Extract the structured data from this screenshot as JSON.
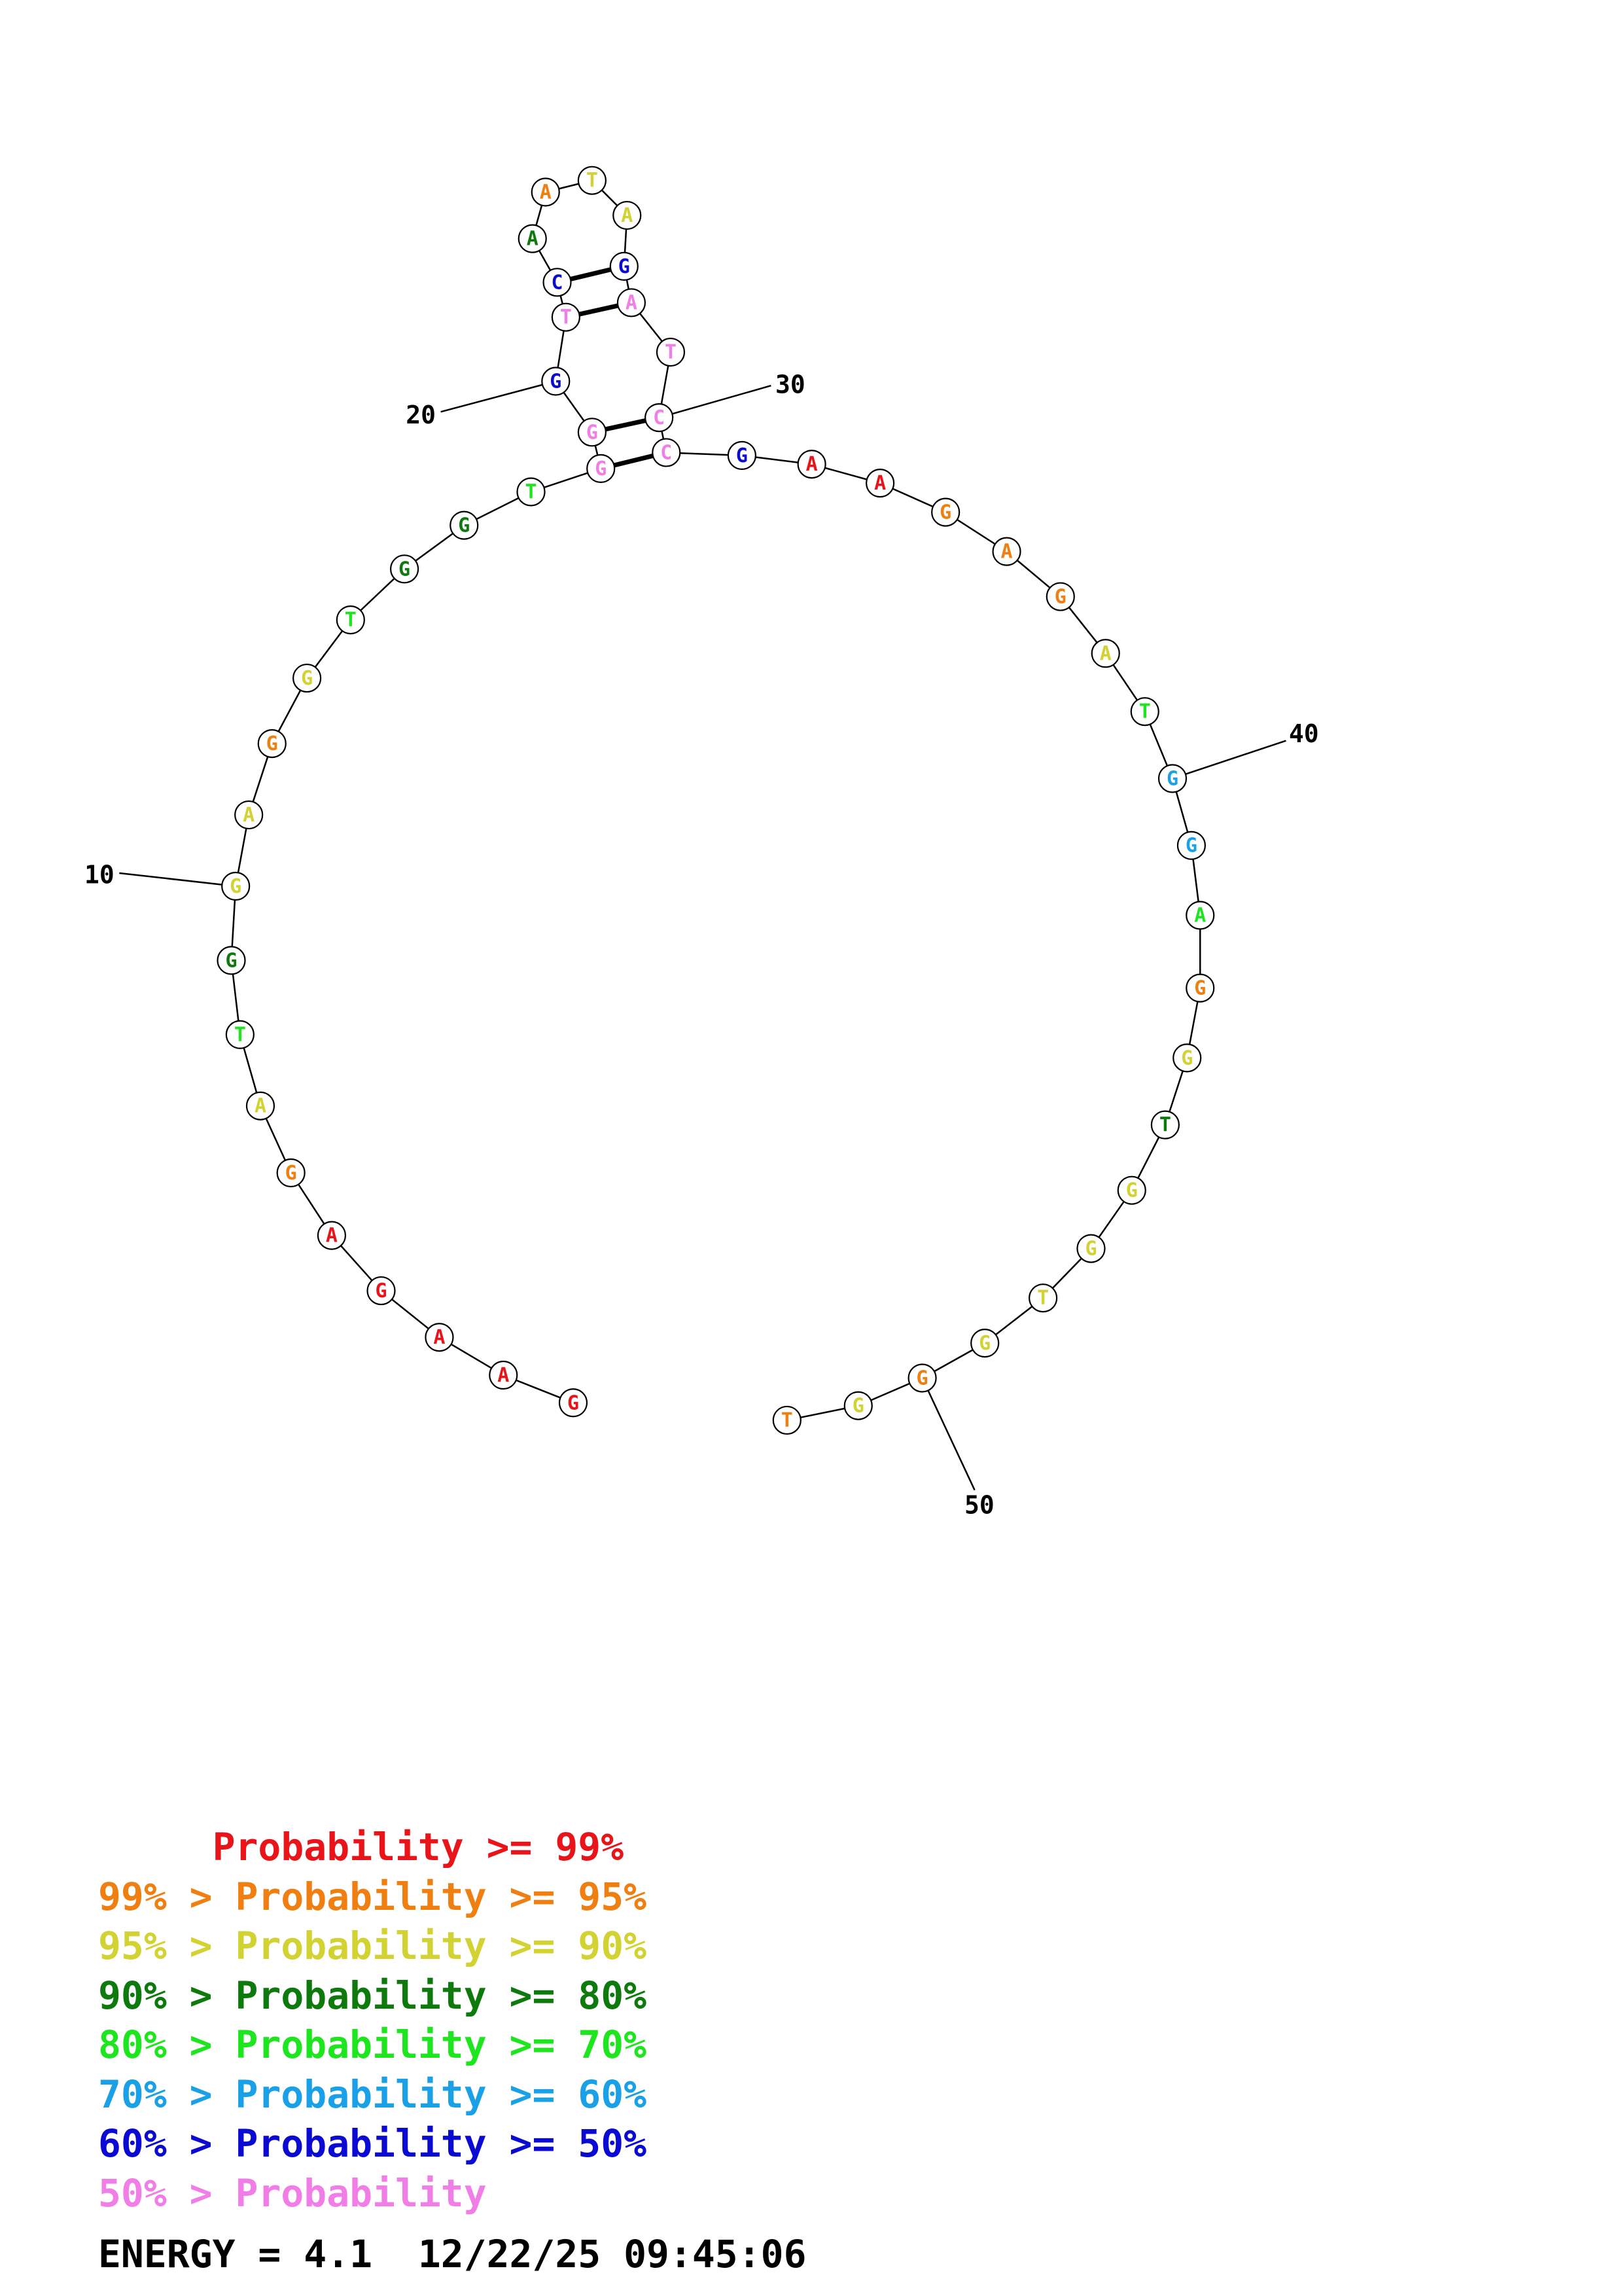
{
  "colors": {
    "p99": "#e8141a",
    "p95": "#f07f12",
    "p90": "#d2d232",
    "p80": "#0e7a0e",
    "p70": "#1ee61e",
    "p60": "#1aa0e6",
    "p50": "#0a0ad2",
    "plow": "#f07ee6"
  },
  "nucleotides": [
    {
      "n": 1,
      "base": "G",
      "cls": "p99"
    },
    {
      "n": 2,
      "base": "A",
      "cls": "p99"
    },
    {
      "n": 3,
      "base": "A",
      "cls": "p99"
    },
    {
      "n": 4,
      "base": "G",
      "cls": "p99"
    },
    {
      "n": 5,
      "base": "A",
      "cls": "p99"
    },
    {
      "n": 6,
      "base": "G",
      "cls": "p95"
    },
    {
      "n": 7,
      "base": "A",
      "cls": "p90"
    },
    {
      "n": 8,
      "base": "T",
      "cls": "p70"
    },
    {
      "n": 9,
      "base": "G",
      "cls": "p80"
    },
    {
      "n": 10,
      "base": "G",
      "cls": "p90"
    },
    {
      "n": 11,
      "base": "A",
      "cls": "p90"
    },
    {
      "n": 12,
      "base": "G",
      "cls": "p95"
    },
    {
      "n": 13,
      "base": "G",
      "cls": "p90"
    },
    {
      "n": 14,
      "base": "T",
      "cls": "p70"
    },
    {
      "n": 15,
      "base": "G",
      "cls": "p80"
    },
    {
      "n": 16,
      "base": "G",
      "cls": "p80"
    },
    {
      "n": 17,
      "base": "T",
      "cls": "p70"
    },
    {
      "n": 18,
      "base": "G",
      "cls": "plow"
    },
    {
      "n": 19,
      "base": "G",
      "cls": "plow"
    },
    {
      "n": 20,
      "base": "G",
      "cls": "p50"
    },
    {
      "n": 21,
      "base": "T",
      "cls": "plow"
    },
    {
      "n": 22,
      "base": "C",
      "cls": "p50"
    },
    {
      "n": 23,
      "base": "A",
      "cls": "p80"
    },
    {
      "n": 24,
      "base": "A",
      "cls": "p95"
    },
    {
      "n": 25,
      "base": "T",
      "cls": "p90"
    },
    {
      "n": 26,
      "base": "A",
      "cls": "p90"
    },
    {
      "n": 27,
      "base": "G",
      "cls": "p50"
    },
    {
      "n": 28,
      "base": "A",
      "cls": "plow"
    },
    {
      "n": 29,
      "base": "T",
      "cls": "plow"
    },
    {
      "n": 30,
      "base": "C",
      "cls": "plow"
    },
    {
      "n": 31,
      "base": "C",
      "cls": "plow"
    },
    {
      "n": 32,
      "base": "G",
      "cls": "p50"
    },
    {
      "n": 33,
      "base": "A",
      "cls": "p99"
    },
    {
      "n": 34,
      "base": "A",
      "cls": "p99"
    },
    {
      "n": 35,
      "base": "G",
      "cls": "p95"
    },
    {
      "n": 36,
      "base": "A",
      "cls": "p95"
    },
    {
      "n": 37,
      "base": "G",
      "cls": "p95"
    },
    {
      "n": 38,
      "base": "A",
      "cls": "p90"
    },
    {
      "n": 39,
      "base": "T",
      "cls": "p70"
    },
    {
      "n": 40,
      "base": "G",
      "cls": "p60"
    },
    {
      "n": 41,
      "base": "G",
      "cls": "p60"
    },
    {
      "n": 42,
      "base": "A",
      "cls": "p70"
    },
    {
      "n": 43,
      "base": "G",
      "cls": "p95"
    },
    {
      "n": 44,
      "base": "G",
      "cls": "p90"
    },
    {
      "n": 45,
      "base": "T",
      "cls": "p80"
    },
    {
      "n": 46,
      "base": "G",
      "cls": "p90"
    },
    {
      "n": 47,
      "base": "G",
      "cls": "p90"
    },
    {
      "n": 48,
      "base": "T",
      "cls": "p90"
    },
    {
      "n": 49,
      "base": "G",
      "cls": "p90"
    },
    {
      "n": 50,
      "base": "G",
      "cls": "p95"
    },
    {
      "n": 51,
      "base": "G",
      "cls": "p90"
    },
    {
      "n": 52,
      "base": "T",
      "cls": "p95"
    }
  ],
  "pairs": [
    [
      18,
      31
    ],
    [
      19,
      30
    ],
    [
      21,
      28
    ],
    [
      22,
      27
    ]
  ],
  "position_ticks": [
    {
      "n": 10,
      "label": "10"
    },
    {
      "n": 20,
      "label": "20"
    },
    {
      "n": 30,
      "label": "30"
    },
    {
      "n": 40,
      "label": "40"
    },
    {
      "n": 50,
      "label": "50"
    }
  ],
  "legend": [
    {
      "cls": "p99",
      "text": "     Probability >= 99%"
    },
    {
      "cls": "p95",
      "text": "99% > Probability >= 95%"
    },
    {
      "cls": "p90",
      "text": "95% > Probability >= 90%"
    },
    {
      "cls": "p80",
      "text": "90% > Probability >= 80%"
    },
    {
      "cls": "p70",
      "text": "80% > Probability >= 70%"
    },
    {
      "cls": "p60",
      "text": "70% > Probability >= 60%"
    },
    {
      "cls": "p50",
      "text": "60% > Probability >= 50%"
    },
    {
      "cls": "plow",
      "text": "50% > Probability"
    }
  ],
  "footer": {
    "text": "ENERGY = 4.1  12/22/25 09:45:06"
  }
}
